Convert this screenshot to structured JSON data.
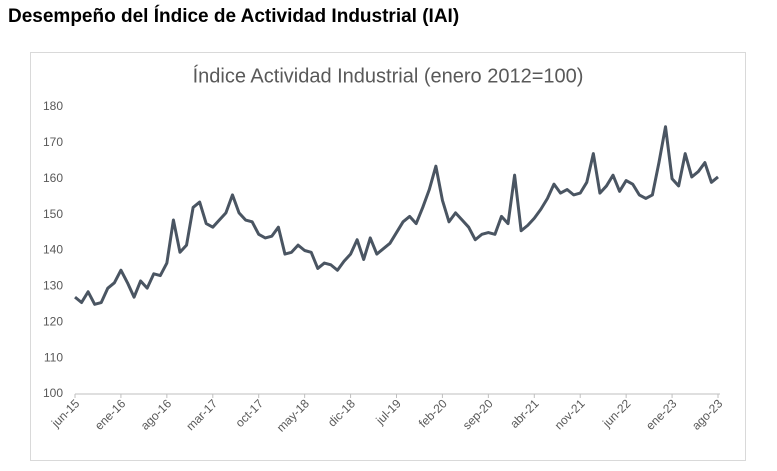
{
  "page_title": "Desempeño del Índice de Actividad Industrial (IAI)",
  "chart_data": {
    "type": "line",
    "title": "Índice Actividad Industrial (enero 2012=100)",
    "categories": [
      "jun-15",
      null,
      null,
      null,
      null,
      null,
      null,
      "ene-16",
      null,
      null,
      null,
      null,
      null,
      null,
      "ago-16",
      null,
      null,
      null,
      null,
      null,
      null,
      "mar-17",
      null,
      null,
      null,
      null,
      null,
      null,
      "oct-17",
      null,
      null,
      null,
      null,
      null,
      null,
      "may-18",
      null,
      null,
      null,
      null,
      null,
      null,
      "dic-18",
      null,
      null,
      null,
      null,
      null,
      null,
      "jul-19",
      null,
      null,
      null,
      null,
      null,
      null,
      "feb-20",
      null,
      null,
      null,
      null,
      null,
      null,
      "sep-20",
      null,
      null,
      null,
      null,
      null,
      null,
      "abr-21",
      null,
      null,
      null,
      null,
      null,
      null,
      "nov-21",
      null,
      null,
      null,
      null,
      null,
      null,
      "jun-22",
      null,
      null,
      null,
      null,
      null,
      null,
      "ene-23",
      null,
      null,
      null,
      null,
      null,
      null,
      "ago-23"
    ],
    "series": [
      {
        "name": "IAI",
        "color": "#4a5562",
        "values": [
          127,
          125.5,
          128.5,
          125,
          125.5,
          129.5,
          131,
          134.5,
          131,
          127,
          131.5,
          129.5,
          133.5,
          133,
          136.5,
          148.5,
          139.5,
          141.5,
          152,
          153.5,
          147.5,
          146.5,
          148.5,
          150.5,
          155.5,
          150.5,
          148.5,
          148,
          144.5,
          143.5,
          144,
          146.5,
          139,
          139.5,
          141.5,
          140,
          139.5,
          135,
          136.5,
          136,
          134.5,
          137,
          139,
          143,
          137.5,
          143.5,
          139,
          140.5,
          142,
          145,
          148,
          149.5,
          147.5,
          152,
          157,
          163.5,
          154,
          148,
          150.5,
          148.5,
          146.5,
          143,
          144.5,
          145,
          144.5,
          149.5,
          147.5,
          161,
          145.5,
          147,
          149,
          151.5,
          154.5,
          158.5,
          156,
          157,
          155.5,
          156,
          159,
          167,
          156,
          158,
          161,
          156.5,
          159.5,
          158.5,
          155.5,
          154.5,
          155.5,
          164.5,
          174.5,
          160,
          158,
          167,
          160.5,
          162,
          164.5,
          159,
          160.5
        ]
      }
    ],
    "ylim": [
      100,
      180
    ],
    "yticks": [
      100,
      110,
      120,
      130,
      140,
      150,
      160,
      170,
      180
    ],
    "grid": false
  }
}
